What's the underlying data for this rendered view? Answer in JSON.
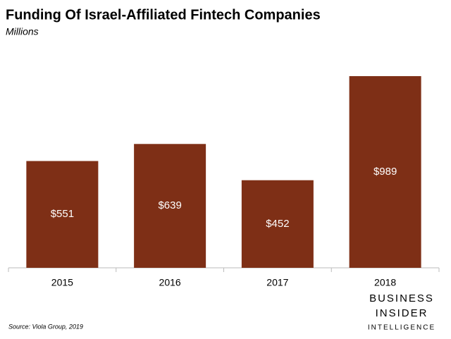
{
  "chart_data": {
    "type": "bar",
    "title": "Funding Of Israel-Affiliated Fintech Companies",
    "subtitle": "Millions",
    "categories": [
      "2015",
      "2016",
      "2017",
      "2018"
    ],
    "values": [
      551,
      639,
      452,
      989
    ],
    "value_labels": [
      "$551",
      "$639",
      "$452",
      "$989"
    ],
    "color": "#7e2f16",
    "source": "Source: Viola Group, 2019",
    "logo": [
      "BUSINESS",
      "INSIDER",
      "INTELLIGENCE"
    ]
  }
}
